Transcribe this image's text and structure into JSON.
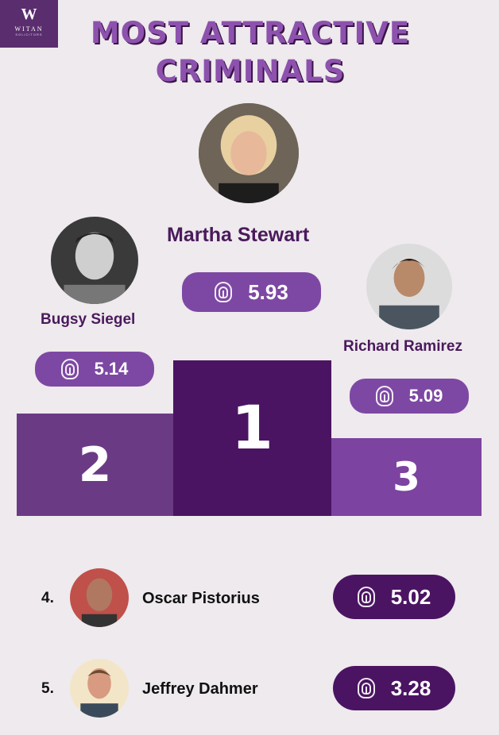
{
  "logo": {
    "mark": "W",
    "name": "WITAN",
    "sub": "SOLICITORS"
  },
  "title": {
    "line1": "MOST ATTRACTIVE",
    "line2": "CRIMINALS"
  },
  "podium": [
    {
      "rank": "1",
      "name": "Martha Stewart",
      "score": "5.93",
      "color": "#4b1462"
    },
    {
      "rank": "2",
      "name": "Bugsy Siegel",
      "score": "5.14",
      "color": "#6b3a85"
    },
    {
      "rank": "3",
      "name": "Richard Ramirez",
      "score": "5.09",
      "color": "#7c43a0"
    }
  ],
  "list": [
    {
      "rank": "4.",
      "name": "Oscar Pistorius",
      "score": "5.02"
    },
    {
      "rank": "5.",
      "name": "Jeffrey Dahmer",
      "score": "3.28"
    }
  ],
  "colors": {
    "badge_top": "#7d48a3",
    "badge_list": "#4b1462",
    "title": "#8d52ad"
  }
}
